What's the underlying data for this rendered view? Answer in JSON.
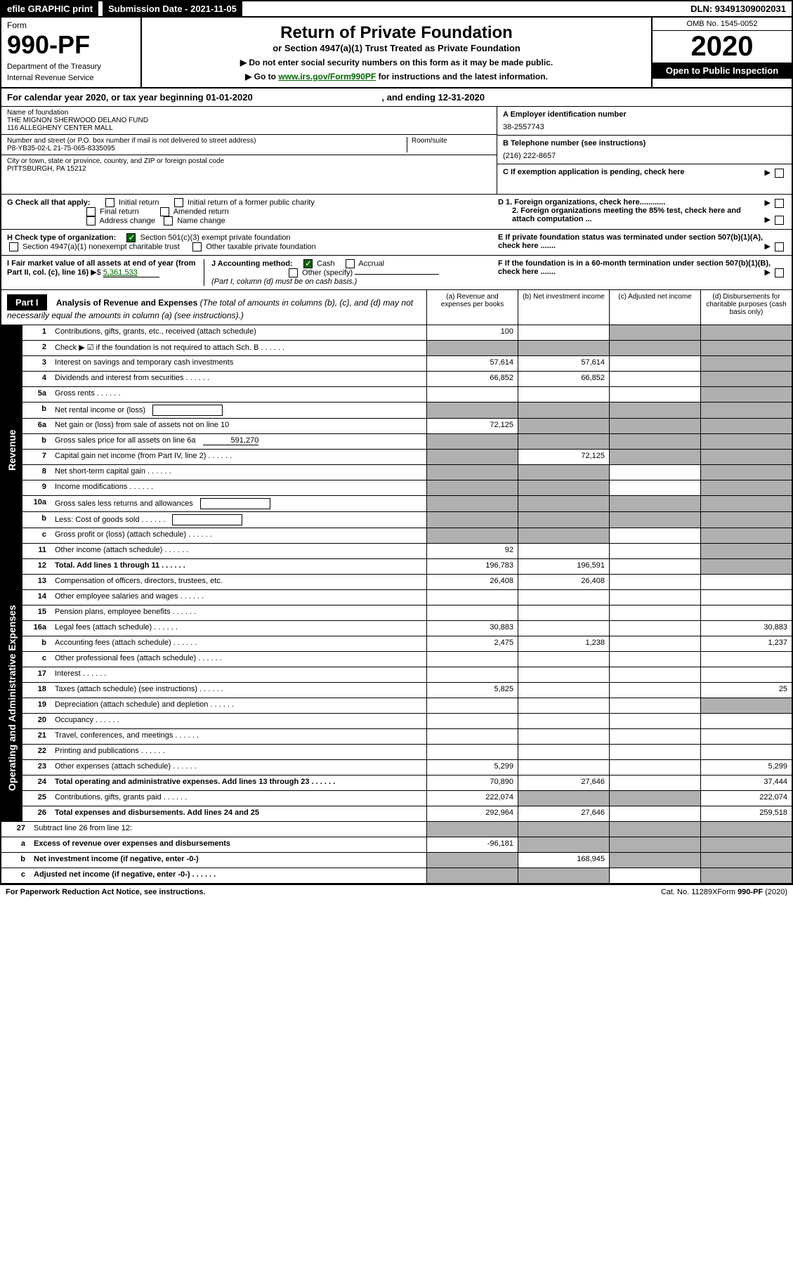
{
  "topbar": {
    "efile": "efile GRAPHIC print",
    "subdate_label": "Submission Date - 2021-11-05",
    "dln": "DLN: 93491309002031"
  },
  "header": {
    "form_word": "Form",
    "form_number": "990-PF",
    "dept1": "Department of the Treasury",
    "dept2": "Internal Revenue Service",
    "title": "Return of Private Foundation",
    "subtitle": "or Section 4947(a)(1) Trust Treated as Private Foundation",
    "instr1": "▶ Do not enter social security numbers on this form as it may be made public.",
    "instr2_pre": "▶ Go to ",
    "instr2_link": "www.irs.gov/Form990PF",
    "instr2_post": " for instructions and the latest information.",
    "omb": "OMB No. 1545-0052",
    "year": "2020",
    "open_pub": "Open to Public Inspection"
  },
  "calyear": "For calendar year 2020, or tax year beginning 01-01-2020",
  "calyear_end": ", and ending 12-31-2020",
  "foundation": {
    "name_label": "Name of foundation",
    "name1": "THE MIGNON SHERWOOD DELANO FUND",
    "name2": "116 ALLEGHENY CENTER MALL",
    "addr_label": "Number and street (or P.O. box number if mail is not delivered to street address)",
    "addr": "P8-YB35-02-L 21-75-065-8335095",
    "room_label": "Room/suite",
    "city_label": "City or town, state or province, country, and ZIP or foreign postal code",
    "city": "PITTSBURGH, PA  15212",
    "ein_label": "A Employer identification number",
    "ein": "38-2557743",
    "phone_label": "B Telephone number (see instructions)",
    "phone": "(216) 222-8657",
    "c_label": "C If exemption application is pending, check here",
    "d1": "D 1. Foreign organizations, check here............",
    "d2": "2. Foreign organizations meeting the 85% test, check here and attach computation ...",
    "e_label": "E   If private foundation status was terminated under section 507(b)(1)(A), check here .......",
    "f_label": "F   If the foundation is in a 60-month termination under section 507(b)(1)(B), check here .......",
    "g_label": "G Check all that apply:",
    "g_opts": [
      "Initial return",
      "Initial return of a former public charity",
      "Final return",
      "Amended return",
      "Address change",
      "Name change"
    ],
    "h_label": "H Check type of organization:",
    "h_501": "Section 501(c)(3) exempt private foundation",
    "h_4947": "Section 4947(a)(1) nonexempt charitable trust",
    "h_other": "Other taxable private foundation",
    "i_label": "I Fair market value of all assets at end of year (from Part II, col. (c), line 16)",
    "i_val": "5,361,533",
    "j_label": "J Accounting method:",
    "j_cash": "Cash",
    "j_accrual": "Accrual",
    "j_other": "Other (specify)",
    "j_note": "(Part I, column (d) must be on cash basis.)"
  },
  "part1": {
    "label": "Part I",
    "title": "Analysis of Revenue and Expenses",
    "note": "(The total of amounts in columns (b), (c), and (d) may not necessarily equal the amounts in column (a) (see instructions).)",
    "col_a": "(a)   Revenue and expenses per books",
    "col_b": "(b)   Net investment income",
    "col_c": "(c)   Adjusted net income",
    "col_d": "(d)   Disbursements for charitable purposes (cash basis only)"
  },
  "sidelabels": {
    "revenue": "Revenue",
    "opex": "Operating and Administrative Expenses"
  },
  "rows": [
    {
      "num": "1",
      "desc": "Contributions, gifts, grants, etc., received (attach schedule)",
      "a": "100",
      "b": "",
      "c": "grey",
      "d": "grey"
    },
    {
      "num": "2",
      "desc": "Check ▶ ☑ if the foundation is not required to attach Sch. B",
      "a": "grey",
      "b": "grey",
      "c": "grey",
      "d": "grey",
      "dots": true
    },
    {
      "num": "3",
      "desc": "Interest on savings and temporary cash investments",
      "a": "57,614",
      "b": "57,614",
      "c": "",
      "d": "grey"
    },
    {
      "num": "4",
      "desc": "Dividends and interest from securities",
      "a": "66,852",
      "b": "66,852",
      "c": "",
      "d": "grey",
      "dots": true
    },
    {
      "num": "5a",
      "desc": "Gross rents",
      "a": "",
      "b": "",
      "c": "",
      "d": "grey",
      "dots": true
    },
    {
      "num": "b",
      "desc": "Net rental income or (loss)",
      "a": "grey",
      "b": "grey",
      "c": "grey",
      "d": "grey",
      "inline_box": true
    },
    {
      "num": "6a",
      "desc": "Net gain or (loss) from sale of assets not on line 10",
      "a": "72,125",
      "b": "grey",
      "c": "grey",
      "d": "grey"
    },
    {
      "num": "b",
      "desc": "Gross sales price for all assets on line 6a",
      "a": "grey",
      "b": "grey",
      "c": "grey",
      "d": "grey",
      "inline_val": "591,270"
    },
    {
      "num": "7",
      "desc": "Capital gain net income (from Part IV, line 2)",
      "a": "grey",
      "b": "72,125",
      "c": "grey",
      "d": "grey",
      "dots": true
    },
    {
      "num": "8",
      "desc": "Net short-term capital gain",
      "a": "grey",
      "b": "grey",
      "c": "",
      "d": "grey",
      "dots": true
    },
    {
      "num": "9",
      "desc": "Income modifications",
      "a": "grey",
      "b": "grey",
      "c": "",
      "d": "grey",
      "dots": true
    },
    {
      "num": "10a",
      "desc": "Gross sales less returns and allowances",
      "a": "grey",
      "b": "grey",
      "c": "grey",
      "d": "grey",
      "inline_box": true
    },
    {
      "num": "b",
      "desc": "Less: Cost of goods sold",
      "a": "grey",
      "b": "grey",
      "c": "grey",
      "d": "grey",
      "inline_box": true,
      "dots": true
    },
    {
      "num": "c",
      "desc": "Gross profit or (loss) (attach schedule)",
      "a": "grey",
      "b": "grey",
      "c": "",
      "d": "grey",
      "dots": true
    },
    {
      "num": "11",
      "desc": "Other income (attach schedule)",
      "a": "92",
      "b": "",
      "c": "",
      "d": "grey",
      "dots": true
    },
    {
      "num": "12",
      "desc": "Total. Add lines 1 through 11",
      "a": "196,783",
      "b": "196,591",
      "c": "",
      "d": "grey",
      "bold": true,
      "dots": true
    },
    {
      "num": "13",
      "desc": "Compensation of officers, directors, trustees, etc.",
      "a": "26,408",
      "b": "26,408",
      "c": "",
      "d": ""
    },
    {
      "num": "14",
      "desc": "Other employee salaries and wages",
      "a": "",
      "b": "",
      "c": "",
      "d": "",
      "dots": true
    },
    {
      "num": "15",
      "desc": "Pension plans, employee benefits",
      "a": "",
      "b": "",
      "c": "",
      "d": "",
      "dots": true
    },
    {
      "num": "16a",
      "desc": "Legal fees (attach schedule)",
      "a": "30,883",
      "b": "",
      "c": "",
      "d": "30,883",
      "dots": true
    },
    {
      "num": "b",
      "desc": "Accounting fees (attach schedule)",
      "a": "2,475",
      "b": "1,238",
      "c": "",
      "d": "1,237",
      "dots": true
    },
    {
      "num": "c",
      "desc": "Other professional fees (attach schedule)",
      "a": "",
      "b": "",
      "c": "",
      "d": "",
      "dots": true
    },
    {
      "num": "17",
      "desc": "Interest",
      "a": "",
      "b": "",
      "c": "",
      "d": "",
      "dots": true
    },
    {
      "num": "18",
      "desc": "Taxes (attach schedule) (see instructions)",
      "a": "5,825",
      "b": "",
      "c": "",
      "d": "25",
      "dots": true
    },
    {
      "num": "19",
      "desc": "Depreciation (attach schedule) and depletion",
      "a": "",
      "b": "",
      "c": "",
      "d": "grey",
      "dots": true
    },
    {
      "num": "20",
      "desc": "Occupancy",
      "a": "",
      "b": "",
      "c": "",
      "d": "",
      "dots": true
    },
    {
      "num": "21",
      "desc": "Travel, conferences, and meetings",
      "a": "",
      "b": "",
      "c": "",
      "d": "",
      "dots": true
    },
    {
      "num": "22",
      "desc": "Printing and publications",
      "a": "",
      "b": "",
      "c": "",
      "d": "",
      "dots": true
    },
    {
      "num": "23",
      "desc": "Other expenses (attach schedule)",
      "a": "5,299",
      "b": "",
      "c": "",
      "d": "5,299",
      "dots": true
    },
    {
      "num": "24",
      "desc": "Total operating and administrative expenses. Add lines 13 through 23",
      "a": "70,890",
      "b": "27,646",
      "c": "",
      "d": "37,444",
      "bold": true,
      "dots": true
    },
    {
      "num": "25",
      "desc": "Contributions, gifts, grants paid",
      "a": "222,074",
      "b": "grey",
      "c": "grey",
      "d": "222,074",
      "dots": true
    },
    {
      "num": "26",
      "desc": "Total expenses and disbursements. Add lines 24 and 25",
      "a": "292,964",
      "b": "27,646",
      "c": "",
      "d": "259,518",
      "bold": true
    },
    {
      "num": "27",
      "desc": "Subtract line 26 from line 12:",
      "a": "grey",
      "b": "grey",
      "c": "grey",
      "d": "grey"
    },
    {
      "num": "a",
      "desc": "Excess of revenue over expenses and disbursements",
      "a": "-96,181",
      "b": "grey",
      "c": "grey",
      "d": "grey",
      "bold": true
    },
    {
      "num": "b",
      "desc": "Net investment income (if negative, enter -0-)",
      "a": "grey",
      "b": "168,945",
      "c": "grey",
      "d": "grey",
      "bold": true
    },
    {
      "num": "c",
      "desc": "Adjusted net income (if negative, enter -0-)",
      "a": "grey",
      "b": "grey",
      "c": "",
      "d": "grey",
      "bold": true,
      "dots": true
    }
  ],
  "footer": {
    "left": "For Paperwork Reduction Act Notice, see instructions.",
    "mid": "Cat. No. 11289X",
    "right": "Form 990-PF (2020)"
  }
}
